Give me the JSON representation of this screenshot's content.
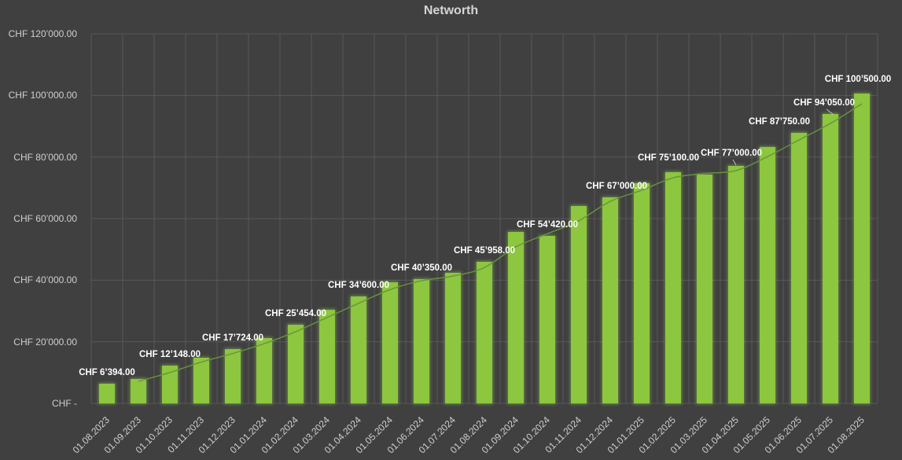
{
  "title": "Networth",
  "colors": {
    "background": "#404040",
    "bar": "#8DC63F",
    "bar_glow": "#96D25A",
    "trendline": "#67943B",
    "gridline": "#57575B",
    "axis_text": "#CFCFCF",
    "data_label_text": "#FFFFFF",
    "leader_line": "#BFBFBF"
  },
  "chart_data": {
    "type": "bar",
    "title": "Networth",
    "series_name": "Networth",
    "categories": [
      "01.08.2023",
      "01.09.2023",
      "01.10.2023",
      "01.11.2023",
      "01.12.2023",
      "01.01.2024",
      "01.02.2024",
      "01.03.2024",
      "01.04.2024",
      "01.05.2024",
      "01.06.2024",
      "01.07.2024",
      "01.08.2024",
      "01.09.2024",
      "01.10.2024",
      "01.11.2024",
      "01.12.2024",
      "01.01.2025",
      "01.02.2025",
      "01.03.2025",
      "01.04.2025",
      "01.05.2025",
      "01.06.2025",
      "01.07.2025",
      "01.08.2025"
    ],
    "values": [
      6394,
      7900,
      12148,
      14700,
      17724,
      21100,
      25454,
      30400,
      34600,
      39300,
      40350,
      42300,
      45958,
      55700,
      54420,
      64200,
      67000,
      71400,
      75100,
      74200,
      77000,
      83300,
      87750,
      94050,
      100500
    ],
    "data_labels": [
      {
        "index": 0,
        "text": "CHF 6’394.00"
      },
      {
        "index": 2,
        "text": "CHF 12’148.00"
      },
      {
        "index": 4,
        "text": "CHF 17’724.00"
      },
      {
        "index": 6,
        "text": "CHF 25’454.00"
      },
      {
        "index": 8,
        "text": "CHF 34’600.00"
      },
      {
        "index": 10,
        "text": "CHF 40’350.00"
      },
      {
        "index": 12,
        "text": "CHF 45’958.00"
      },
      {
        "index": 14,
        "text": "CHF 54’420.00"
      },
      {
        "index": 16,
        "text": "CHF 67’000.00"
      },
      {
        "index": 18,
        "text": "CHF 75’100.00"
      },
      {
        "index": 20,
        "text": "CHF 77’000.00"
      },
      {
        "index": 22,
        "text": "CHF 87’750.00"
      },
      {
        "index": 23,
        "text": "CHF 94’050.00"
      },
      {
        "index": 24,
        "text": "CHF 100’500.00"
      }
    ],
    "y_ticks": [
      {
        "value": 0,
        "label": "CHF -"
      },
      {
        "value": 20000,
        "label": "CHF 20’000.00"
      },
      {
        "value": 40000,
        "label": "CHF 40’000.00"
      },
      {
        "value": 60000,
        "label": "CHF 60’000.00"
      },
      {
        "value": 80000,
        "label": "CHF 80’000.00"
      },
      {
        "value": 100000,
        "label": "CHF 100’000.00"
      },
      {
        "value": 120000,
        "label": "CHF 120’000.00"
      }
    ],
    "ylim": [
      0,
      120000
    ],
    "grid": true,
    "legend": "none",
    "trendline": {
      "type": "moving_average",
      "period": 2
    }
  }
}
